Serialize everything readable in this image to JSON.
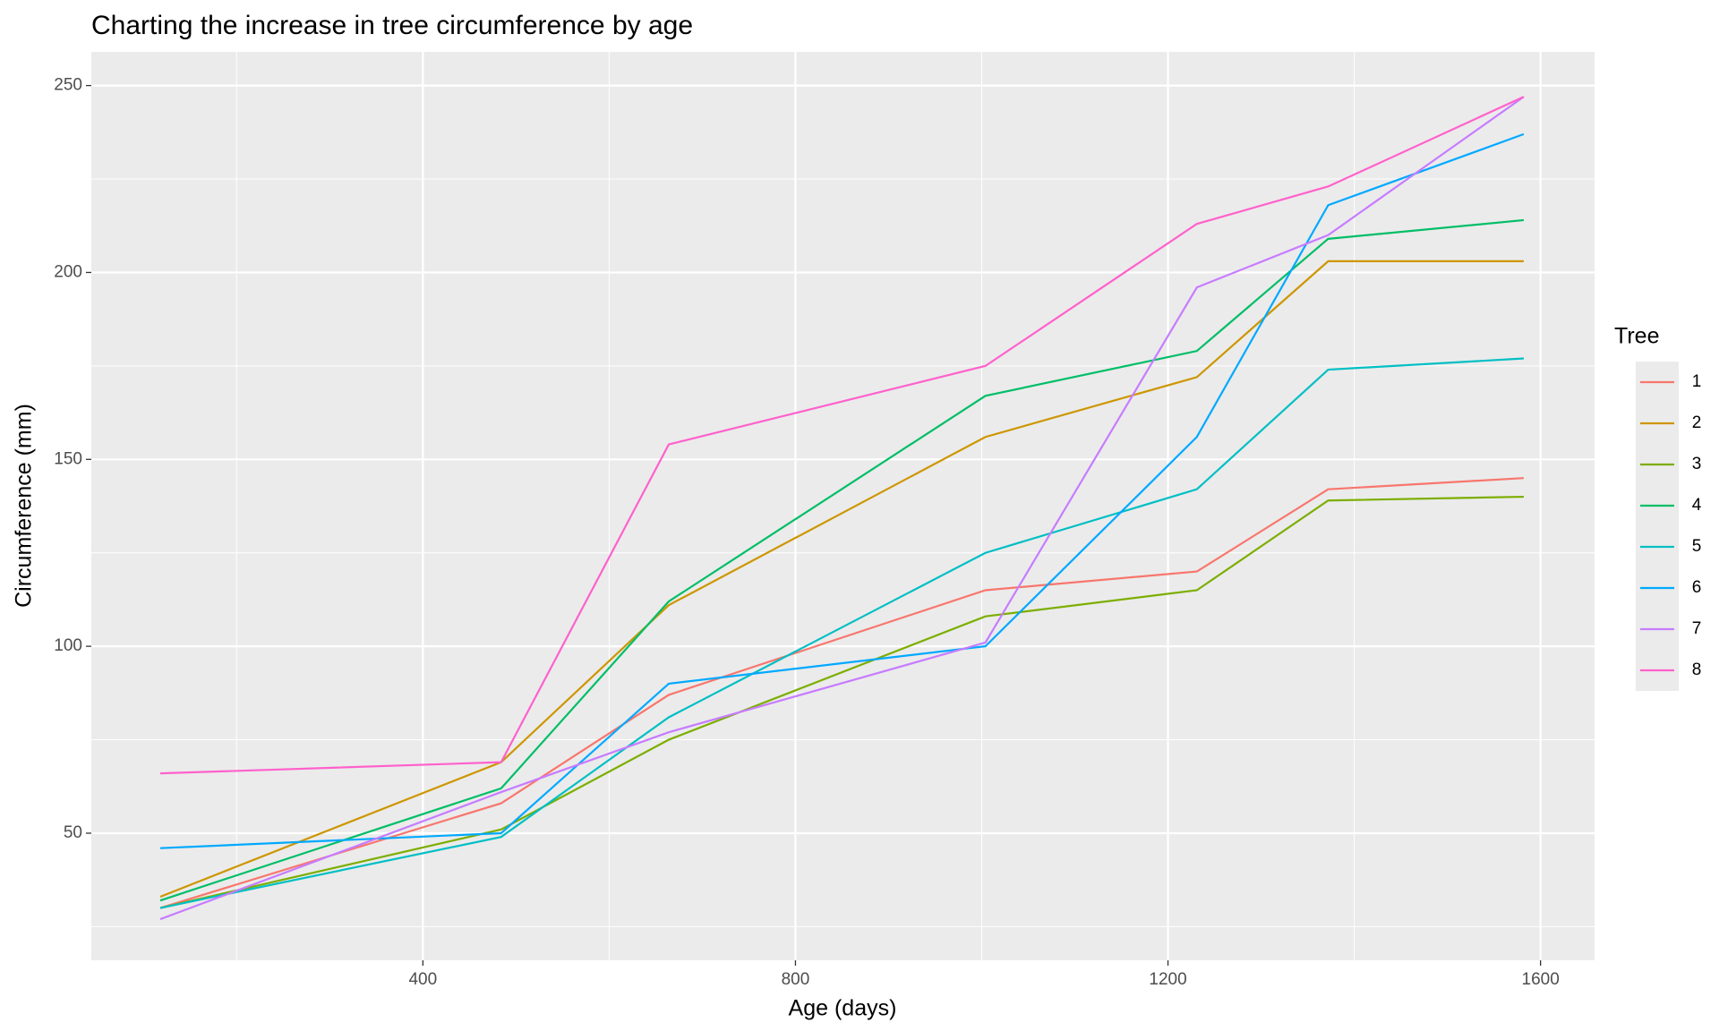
{
  "chart_data": {
    "type": "line",
    "title": "Charting the increase in tree circumference by age",
    "x_label": "Age (days)",
    "y_label": "Circumference (mm)",
    "legend_title": "Tree",
    "legend_position": "right",
    "x": [
      118,
      484,
      664,
      1004,
      1231,
      1372,
      1582
    ],
    "series": [
      {
        "name": "1",
        "color": "#F8766D",
        "values": [
          30,
          58,
          87,
          115,
          120,
          142,
          145
        ]
      },
      {
        "name": "2",
        "color": "#CD9600",
        "values": [
          33,
          69,
          111,
          156,
          172,
          203,
          203
        ]
      },
      {
        "name": "3",
        "color": "#7CAE00",
        "values": [
          30,
          51,
          75,
          108,
          115,
          139,
          140
        ]
      },
      {
        "name": "4",
        "color": "#00BE67",
        "values": [
          32,
          62,
          112,
          167,
          179,
          209,
          214
        ]
      },
      {
        "name": "5",
        "color": "#00BFC4",
        "values": [
          30,
          49,
          81,
          125,
          142,
          174,
          177
        ]
      },
      {
        "name": "6",
        "color": "#00A9FF",
        "values": [
          46,
          50,
          90,
          100,
          156,
          218,
          237
        ]
      },
      {
        "name": "7",
        "color": "#C77CFF",
        "values": [
          27,
          61,
          77,
          101,
          196,
          210,
          247
        ]
      },
      {
        "name": "8",
        "color": "#FF61CC",
        "values": [
          66,
          69,
          154,
          175,
          213,
          223,
          247
        ]
      }
    ],
    "xlim": [
      44,
      1658
    ],
    "ylim": [
      16,
      259
    ],
    "xticks": [
      400,
      800,
      1200,
      1600
    ],
    "yticks": [
      50,
      100,
      150,
      200,
      250
    ],
    "x_minor_grid": [
      200,
      600,
      1000,
      1400
    ],
    "y_minor_grid": [
      25,
      75,
      125,
      175,
      225
    ],
    "grid": true
  }
}
